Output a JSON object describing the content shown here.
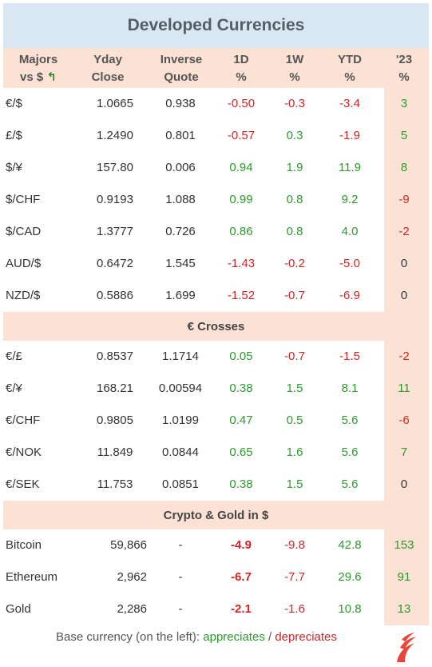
{
  "title": "Developed Currencies",
  "header": {
    "col0": [
      "Majors",
      "vs $"
    ],
    "col1": [
      "Yday",
      "Close"
    ],
    "col2": [
      "Inverse",
      "Quote"
    ],
    "col3": [
      "1D",
      "%"
    ],
    "col4": [
      "1W",
      "%"
    ],
    "col5": [
      "YTD",
      "%"
    ],
    "col6": [
      "'23",
      "%"
    ],
    "arrow_icon": "up-left-arrow-icon"
  },
  "majors": [
    {
      "pair": "€/$",
      "close": "1.0665",
      "inverse": "0.938",
      "d1": "-0.50",
      "w1": "-0.3",
      "ytd": "-3.4",
      "y23": "3"
    },
    {
      "pair": "£/$",
      "close": "1.2490",
      "inverse": "0.801",
      "d1": "-0.57",
      "w1": "0.3",
      "ytd": "-1.9",
      "y23": "5"
    },
    {
      "pair": "$/¥",
      "close": "157.80",
      "inverse": "0.006",
      "d1": "0.94",
      "w1": "1.9",
      "ytd": "11.9",
      "y23": "8"
    },
    {
      "pair": "$/CHF",
      "close": "0.9193",
      "inverse": "1.088",
      "d1": "0.99",
      "w1": "0.8",
      "ytd": "9.2",
      "y23": "-9"
    },
    {
      "pair": "$/CAD",
      "close": "1.3777",
      "inverse": "0.726",
      "d1": "0.86",
      "w1": "0.8",
      "ytd": "4.0",
      "y23": "-2"
    },
    {
      "pair": "AUD/$",
      "close": "0.6472",
      "inverse": "1.545",
      "d1": "-1.43",
      "w1": "-0.2",
      "ytd": "-5.0",
      "y23": "0"
    },
    {
      "pair": "NZD/$",
      "close": "0.5886",
      "inverse": "1.699",
      "d1": "-1.52",
      "w1": "-0.7",
      "ytd": "-6.9",
      "y23": "0"
    }
  ],
  "section_crosses": "€ Crosses",
  "crosses": [
    {
      "pair": "€/£",
      "close": "0.8537",
      "inverse": "1.1714",
      "d1": "0.05",
      "w1": "-0.7",
      "ytd": "-1.5",
      "y23": "-2"
    },
    {
      "pair": "€/¥",
      "close": "168.21",
      "inverse": "0.00594",
      "d1": "0.38",
      "w1": "1.5",
      "ytd": "8.1",
      "y23": "11"
    },
    {
      "pair": "€/CHF",
      "close": "0.9805",
      "inverse": "1.0199",
      "d1": "0.47",
      "w1": "0.5",
      "ytd": "5.6",
      "y23": "-6"
    },
    {
      "pair": "€/NOK",
      "close": "11.849",
      "inverse": "0.0844",
      "d1": "0.65",
      "w1": "1.6",
      "ytd": "5.6",
      "y23": "7"
    },
    {
      "pair": "€/SEK",
      "close": "11.753",
      "inverse": "0.0851",
      "d1": "0.38",
      "w1": "1.5",
      "ytd": "5.6",
      "y23": "0"
    }
  ],
  "section_crypto": "Crypto & Gold in $",
  "crypto": [
    {
      "pair": "Bitcoin",
      "close": "59,866",
      "inverse": "-",
      "d1": "-4.9",
      "w1": "-9.8",
      "ytd": "42.8",
      "y23": "153"
    },
    {
      "pair": "Ethereum",
      "close": "2,962",
      "inverse": "-",
      "d1": "-6.7",
      "w1": "-7.7",
      "ytd": "29.6",
      "y23": "91"
    },
    {
      "pair": "Gold",
      "close": "2,286",
      "inverse": "-",
      "d1": "-2.1",
      "w1": "-1.6",
      "ytd": "10.8",
      "y23": "13"
    }
  ],
  "legend": {
    "prefix": "Base currency (on the left):",
    "appreciates": "appreciates",
    "separator": "/",
    "depreciates": "depreciates",
    "logo_icon": "flame-logo-icon"
  },
  "colors": {
    "positive": "#2c9a2c",
    "negative": "#d12626",
    "title_bg": "#d9e7f3",
    "header_bg": "#fbe2d4"
  }
}
